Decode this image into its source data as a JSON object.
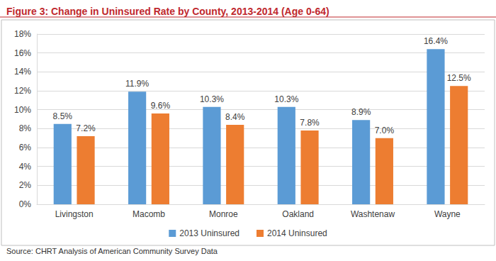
{
  "chart_data": {
    "type": "bar",
    "title": "Figure 3: Change in Uninsured Rate by County, 2013-2014 (Age 0-64)",
    "source": "Source: CHRT Analysis of American Community Survey Data",
    "categories": [
      "Livingston",
      "Macomb",
      "Monroe",
      "Oakland",
      "Washtenaw",
      "Wayne"
    ],
    "series": [
      {
        "name": "2013 Uninsured",
        "color": "#5b9bd5",
        "values": [
          8.5,
          11.9,
          10.3,
          10.3,
          8.9,
          16.4
        ],
        "value_labels": [
          "8.5%",
          "11.9%",
          "10.3%",
          "10.3%",
          "8.9%",
          "16.4%"
        ]
      },
      {
        "name": "2014 Uninsured",
        "color": "#ed7d31",
        "values": [
          7.2,
          9.6,
          8.4,
          7.8,
          7.0,
          12.5
        ],
        "value_labels": [
          "7.2%",
          "9.6%",
          "8.4%",
          "7.8%",
          "7.0%",
          "12.5%"
        ]
      }
    ],
    "ylim": [
      0,
      18
    ],
    "yticks": [
      {
        "value": 0,
        "label": "0%"
      },
      {
        "value": 2,
        "label": "2%"
      },
      {
        "value": 4,
        "label": "4%"
      },
      {
        "value": 6,
        "label": "6%"
      },
      {
        "value": 8,
        "label": "8%"
      },
      {
        "value": 10,
        "label": "10%"
      },
      {
        "value": 12,
        "label": "12%"
      },
      {
        "value": 14,
        "label": "14%"
      },
      {
        "value": 16,
        "label": "16%"
      },
      {
        "value": 18,
        "label": "18%"
      }
    ],
    "grid": true,
    "legend": "bottom",
    "data_labels": true
  }
}
